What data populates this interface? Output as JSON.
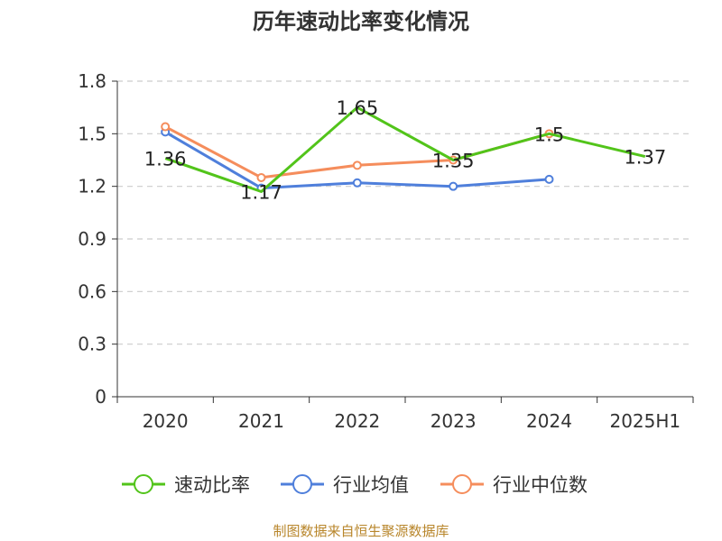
{
  "chart_data": {
    "type": "line",
    "title": "历年速动比率变化情况",
    "categories": [
      "2020",
      "2021",
      "2022",
      "2023",
      "2024",
      "2025H1"
    ],
    "ylim": [
      0,
      1.8
    ],
    "yticks": [
      "0",
      "0.3",
      "0.6",
      "0.9",
      "1.2",
      "1.5",
      "1.8"
    ],
    "grid": true,
    "legend_position": "bottom",
    "series": [
      {
        "name": "速动比率",
        "color": "#52c41a",
        "values": [
          1.36,
          1.17,
          1.65,
          1.35,
          1.5,
          1.37
        ],
        "labels": [
          "1.36",
          "1.17",
          "1.65",
          "1.35",
          "1.5",
          "1.37"
        ]
      },
      {
        "name": "行业均值",
        "color": "#4f7fdb",
        "values": [
          1.51,
          1.19,
          1.22,
          1.2,
          1.24,
          null
        ]
      },
      {
        "name": "行业中位数",
        "color": "#f58d5c",
        "values": [
          1.54,
          1.25,
          1.32,
          1.35,
          1.5,
          null
        ]
      }
    ],
    "source": "制图数据来自恒生聚源数据库"
  }
}
